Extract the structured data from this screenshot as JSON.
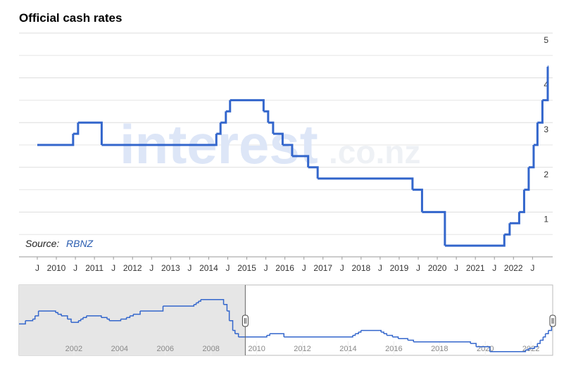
{
  "chart_data": {
    "type": "step",
    "title": "Official cash rates",
    "source_label": "Source:",
    "source_name": "RBNZ",
    "watermark": {
      "main": "interest",
      "suffix": ".co.nz"
    },
    "color": "#3366cc",
    "grid": true,
    "xlim": [
      2009.02,
      2023.03
    ],
    "ylim": [
      0,
      5
    ],
    "yticks": [
      1,
      2,
      3,
      4,
      5
    ],
    "minor_yticks": [
      0.5,
      1.5,
      2.5,
      3.5,
      4.5
    ],
    "xticks": [
      {
        "value": 2009.5,
        "label": "J"
      },
      {
        "value": 2010,
        "label": "2010"
      },
      {
        "value": 2010.5,
        "label": "J"
      },
      {
        "value": 2011,
        "label": "2011"
      },
      {
        "value": 2011.5,
        "label": "J"
      },
      {
        "value": 2012,
        "label": "2012"
      },
      {
        "value": 2012.5,
        "label": "J"
      },
      {
        "value": 2013,
        "label": "2013"
      },
      {
        "value": 2013.5,
        "label": "J"
      },
      {
        "value": 2014,
        "label": "2014"
      },
      {
        "value": 2014.5,
        "label": "J"
      },
      {
        "value": 2015,
        "label": "2015"
      },
      {
        "value": 2015.5,
        "label": "J"
      },
      {
        "value": 2016,
        "label": "2016"
      },
      {
        "value": 2016.5,
        "label": "J"
      },
      {
        "value": 2017,
        "label": "2017"
      },
      {
        "value": 2017.5,
        "label": "J"
      },
      {
        "value": 2018,
        "label": "2018"
      },
      {
        "value": 2018.5,
        "label": "J"
      },
      {
        "value": 2019,
        "label": "2019"
      },
      {
        "value": 2019.5,
        "label": "J"
      },
      {
        "value": 2020,
        "label": "2020"
      },
      {
        "value": 2020.5,
        "label": "J"
      },
      {
        "value": 2021,
        "label": "2021"
      },
      {
        "value": 2021.5,
        "label": "J"
      },
      {
        "value": 2022,
        "label": "2022"
      },
      {
        "value": 2022.5,
        "label": "J"
      }
    ],
    "x": [
      2009.5,
      2010.44,
      2010.57,
      2011.19,
      2014.2,
      2014.31,
      2014.45,
      2014.56,
      2015.44,
      2015.56,
      2015.69,
      2015.94,
      2016.19,
      2016.61,
      2016.86,
      2019.35,
      2019.6,
      2020.2,
      2021.76,
      2021.9,
      2022.15,
      2022.28,
      2022.4,
      2022.53,
      2022.63,
      2022.76,
      2022.9
    ],
    "values": [
      2.5,
      2.75,
      3.0,
      2.5,
      2.75,
      3.0,
      3.25,
      3.5,
      3.25,
      3.0,
      2.75,
      2.5,
      2.25,
      2.0,
      1.75,
      1.5,
      1.0,
      0.25,
      0.5,
      0.75,
      1.0,
      1.5,
      2.0,
      2.5,
      3.0,
      3.5,
      4.25
    ],
    "navigator": {
      "xlim": [
        1999.6,
        2022.95
      ],
      "ylim": [
        0,
        10.5
      ],
      "selection": [
        2009.5,
        2022.95
      ],
      "xticks": [
        2002,
        2004,
        2006,
        2008,
        2010,
        2012,
        2014,
        2016,
        2018,
        2020,
        2022
      ],
      "x": [
        1999.6,
        1999.88,
        2000.2,
        2000.3,
        2000.45,
        2001.2,
        2001.3,
        2001.45,
        2001.72,
        2001.88,
        2002.2,
        2002.3,
        2002.4,
        2002.55,
        2003.2,
        2003.45,
        2003.55,
        2004.05,
        2004.3,
        2004.45,
        2004.6,
        2004.9,
        2005.9,
        2007.25,
        2007.35,
        2007.45,
        2007.55,
        2008.55,
        2008.7,
        2008.8,
        2008.95,
        2009.05,
        2009.2,
        2010.44,
        2010.57,
        2011.19,
        2014.2,
        2014.31,
        2014.45,
        2014.56,
        2015.44,
        2015.56,
        2015.69,
        2015.94,
        2016.19,
        2016.61,
        2016.86,
        2019.35,
        2019.6,
        2020.2,
        2021.76,
        2021.9,
        2022.15,
        2022.28,
        2022.4,
        2022.53,
        2022.63,
        2022.76,
        2022.9
      ],
      "values": [
        4.5,
        5.0,
        5.25,
        5.75,
        6.5,
        6.25,
        6.0,
        5.75,
        5.25,
        4.75,
        5.0,
        5.25,
        5.5,
        5.75,
        5.5,
        5.25,
        5.0,
        5.25,
        5.5,
        5.75,
        6.0,
        6.5,
        7.25,
        7.5,
        7.75,
        8.0,
        8.25,
        7.5,
        6.5,
        5.0,
        3.5,
        3.0,
        2.5,
        2.75,
        3.0,
        2.5,
        2.75,
        3.0,
        3.25,
        3.5,
        3.25,
        3.0,
        2.75,
        2.5,
        2.25,
        2.0,
        1.75,
        1.5,
        1.0,
        0.25,
        0.5,
        0.75,
        1.0,
        1.5,
        2.0,
        2.5,
        3.0,
        3.5,
        4.25
      ]
    }
  }
}
